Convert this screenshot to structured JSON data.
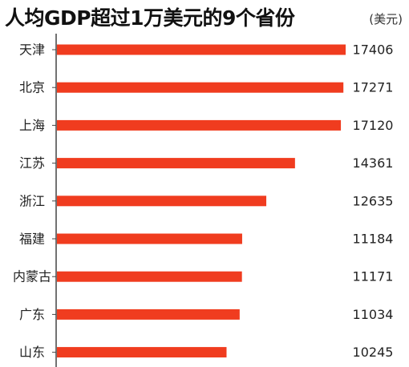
{
  "chart_data": {
    "type": "bar",
    "orientation": "horizontal",
    "title": "人均GDP超过1万美元的9个省份",
    "unit": "(美元)",
    "categories": [
      "天津",
      "北京",
      "上海",
      "江苏",
      "浙江",
      "福建",
      "内蒙古",
      "广东",
      "山东"
    ],
    "values": [
      17406,
      17271,
      17120,
      14361,
      12635,
      11184,
      11171,
      11034,
      10245
    ],
    "value_labels": [
      "17406",
      "17271",
      "17120",
      "14361",
      "12635",
      "11184",
      "11171",
      "11034",
      "10245"
    ],
    "xlim": [
      0,
      17406
    ],
    "grid": false,
    "legend": "none",
    "bar_color": "#f03c1f",
    "text_color": "#222222",
    "axis_color": "#444444"
  }
}
